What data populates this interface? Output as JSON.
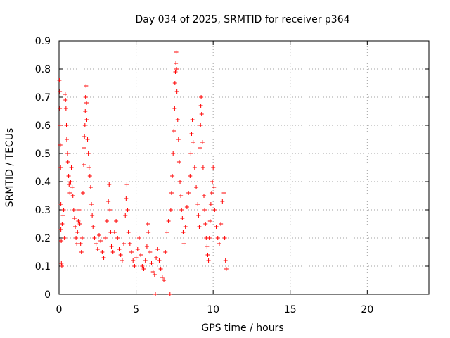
{
  "chart_data": {
    "type": "scatter",
    "title": "Day 034 of 2025, SRMTID for receiver p364",
    "xlabel": "GPS time / hours",
    "ylabel": "SRMTID / TECUs",
    "xlim": [
      0,
      24
    ],
    "ylim": [
      0,
      0.9
    ],
    "xticks": [
      0,
      5,
      10,
      15,
      20
    ],
    "xtick_labels": [
      "0",
      "5",
      "10",
      "15",
      "20"
    ],
    "yticks": [
      0,
      0.1,
      0.2,
      0.3,
      0.4,
      0.5,
      0.6,
      0.7,
      0.8,
      0.9
    ],
    "ytick_labels": [
      "0",
      "0.1",
      "0.2",
      "0.3",
      "0.4",
      "0.5",
      "0.6",
      "0.7",
      "0.8",
      "0.9"
    ],
    "grid": true,
    "marker": "plus",
    "color": "#ff0000",
    "data_range_hours": [
      0,
      10.9
    ],
    "series": [
      {
        "name": "SRMTID",
        "points": [
          [
            0.02,
            0.76
          ],
          [
            0.05,
            0.72
          ],
          [
            0.05,
            0.66
          ],
          [
            0.07,
            0.6
          ],
          [
            0.08,
            0.53
          ],
          [
            0.1,
            0.45
          ],
          [
            0.12,
            0.32
          ],
          [
            0.12,
            0.23
          ],
          [
            0.14,
            0.19
          ],
          [
            0.15,
            0.11
          ],
          [
            0.18,
            0.1
          ],
          [
            0.2,
            0.25
          ],
          [
            0.25,
            0.28
          ],
          [
            0.3,
            0.3
          ],
          [
            0.35,
            0.2
          ],
          [
            0.4,
            0.71
          ],
          [
            0.42,
            0.69
          ],
          [
            0.45,
            0.66
          ],
          [
            0.48,
            0.6
          ],
          [
            0.5,
            0.55
          ],
          [
            0.55,
            0.5
          ],
          [
            0.58,
            0.47
          ],
          [
            0.62,
            0.42
          ],
          [
            0.65,
            0.39
          ],
          [
            0.7,
            0.36
          ],
          [
            0.75,
            0.4
          ],
          [
            0.8,
            0.45
          ],
          [
            0.85,
            0.38
          ],
          [
            0.9,
            0.35
          ],
          [
            0.95,
            0.3
          ],
          [
            1.0,
            0.27
          ],
          [
            1.05,
            0.24
          ],
          [
            1.1,
            0.2
          ],
          [
            1.15,
            0.18
          ],
          [
            1.2,
            0.22
          ],
          [
            1.25,
            0.26
          ],
          [
            1.3,
            0.3
          ],
          [
            1.35,
            0.25
          ],
          [
            1.4,
            0.18
          ],
          [
            1.45,
            0.15
          ],
          [
            1.5,
            0.2
          ],
          [
            1.55,
            0.36
          ],
          [
            1.6,
            0.46
          ],
          [
            1.62,
            0.52
          ],
          [
            1.65,
            0.56
          ],
          [
            1.68,
            0.6
          ],
          [
            1.7,
            0.65
          ],
          [
            1.72,
            0.7
          ],
          [
            1.75,
            0.74
          ],
          [
            1.78,
            0.68
          ],
          [
            1.8,
            0.62
          ],
          [
            1.85,
            0.55
          ],
          [
            1.9,
            0.5
          ],
          [
            1.95,
            0.45
          ],
          [
            2.0,
            0.42
          ],
          [
            2.05,
            0.38
          ],
          [
            2.1,
            0.32
          ],
          [
            2.15,
            0.28
          ],
          [
            2.2,
            0.24
          ],
          [
            2.3,
            0.2
          ],
          [
            2.4,
            0.18
          ],
          [
            2.5,
            0.16
          ],
          [
            2.6,
            0.21
          ],
          [
            2.7,
            0.19
          ],
          [
            2.8,
            0.15
          ],
          [
            2.9,
            0.13
          ],
          [
            3.0,
            0.2
          ],
          [
            3.1,
            0.26
          ],
          [
            3.2,
            0.33
          ],
          [
            3.25,
            0.39
          ],
          [
            3.3,
            0.3
          ],
          [
            3.35,
            0.22
          ],
          [
            3.4,
            0.17
          ],
          [
            3.5,
            0.15
          ],
          [
            3.6,
            0.22
          ],
          [
            3.7,
            0.26
          ],
          [
            3.8,
            0.2
          ],
          [
            3.9,
            0.16
          ],
          [
            4.0,
            0.14
          ],
          [
            4.1,
            0.12
          ],
          [
            4.2,
            0.18
          ],
          [
            4.3,
            0.28
          ],
          [
            4.35,
            0.34
          ],
          [
            4.4,
            0.39
          ],
          [
            4.45,
            0.3
          ],
          [
            4.5,
            0.22
          ],
          [
            4.6,
            0.18
          ],
          [
            4.7,
            0.15
          ],
          [
            4.8,
            0.12
          ],
          [
            4.9,
            0.1
          ],
          [
            5.0,
            0.13
          ],
          [
            5.1,
            0.16
          ],
          [
            5.2,
            0.2
          ],
          [
            5.3,
            0.14
          ],
          [
            5.4,
            0.1
          ],
          [
            5.5,
            0.09
          ],
          [
            5.6,
            0.12
          ],
          [
            5.7,
            0.17
          ],
          [
            5.75,
            0.25
          ],
          [
            5.8,
            0.22
          ],
          [
            5.9,
            0.15
          ],
          [
            6.0,
            0.11
          ],
          [
            6.1,
            0.08
          ],
          [
            6.2,
            0.07
          ],
          [
            6.25,
            0.0
          ],
          [
            6.3,
            0.13
          ],
          [
            6.4,
            0.16
          ],
          [
            6.5,
            0.12
          ],
          [
            6.6,
            0.09
          ],
          [
            6.7,
            0.06
          ],
          [
            6.8,
            0.05
          ],
          [
            6.9,
            0.15
          ],
          [
            7.0,
            0.22
          ],
          [
            7.1,
            0.26
          ],
          [
            7.2,
            0.0
          ],
          [
            7.25,
            0.3
          ],
          [
            7.3,
            0.36
          ],
          [
            7.35,
            0.42
          ],
          [
            7.4,
            0.5
          ],
          [
            7.45,
            0.58
          ],
          [
            7.5,
            0.66
          ],
          [
            7.52,
            0.75
          ],
          [
            7.55,
            0.79
          ],
          [
            7.58,
            0.82
          ],
          [
            7.6,
            0.86
          ],
          [
            7.62,
            0.8
          ],
          [
            7.65,
            0.72
          ],
          [
            7.7,
            0.62
          ],
          [
            7.75,
            0.55
          ],
          [
            7.8,
            0.47
          ],
          [
            7.85,
            0.4
          ],
          [
            7.9,
            0.35
          ],
          [
            7.95,
            0.3
          ],
          [
            8.0,
            0.27
          ],
          [
            8.05,
            0.22
          ],
          [
            8.1,
            0.18
          ],
          [
            8.2,
            0.24
          ],
          [
            8.3,
            0.31
          ],
          [
            8.4,
            0.36
          ],
          [
            8.5,
            0.42
          ],
          [
            8.55,
            0.5
          ],
          [
            8.6,
            0.57
          ],
          [
            8.65,
            0.62
          ],
          [
            8.7,
            0.54
          ],
          [
            8.8,
            0.45
          ],
          [
            8.9,
            0.38
          ],
          [
            9.0,
            0.32
          ],
          [
            9.05,
            0.28
          ],
          [
            9.1,
            0.24
          ],
          [
            9.15,
            0.52
          ],
          [
            9.18,
            0.6
          ],
          [
            9.2,
            0.67
          ],
          [
            9.22,
            0.7
          ],
          [
            9.25,
            0.64
          ],
          [
            9.3,
            0.54
          ],
          [
            9.35,
            0.45
          ],
          [
            9.4,
            0.35
          ],
          [
            9.45,
            0.3
          ],
          [
            9.5,
            0.25
          ],
          [
            9.55,
            0.2
          ],
          [
            9.6,
            0.17
          ],
          [
            9.65,
            0.14
          ],
          [
            9.7,
            0.12
          ],
          [
            9.75,
            0.2
          ],
          [
            9.8,
            0.26
          ],
          [
            9.85,
            0.32
          ],
          [
            9.9,
            0.36
          ],
          [
            9.95,
            0.4
          ],
          [
            10.0,
            0.45
          ],
          [
            10.05,
            0.38
          ],
          [
            10.1,
            0.3
          ],
          [
            10.2,
            0.24
          ],
          [
            10.3,
            0.2
          ],
          [
            10.4,
            0.18
          ],
          [
            10.5,
            0.25
          ],
          [
            10.6,
            0.33
          ],
          [
            10.7,
            0.36
          ],
          [
            10.75,
            0.2
          ],
          [
            10.8,
            0.12
          ],
          [
            10.85,
            0.09
          ]
        ]
      }
    ]
  }
}
